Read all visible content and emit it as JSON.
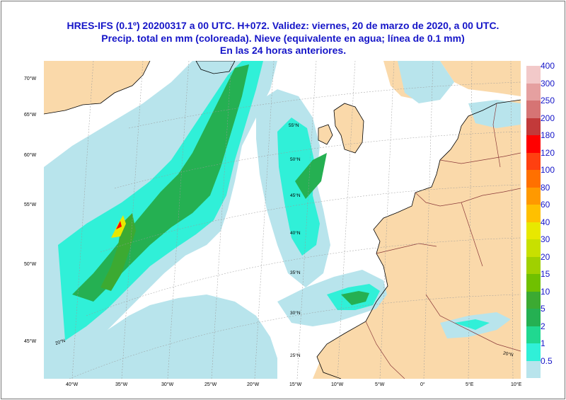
{
  "title": {
    "line1": "HRES-IFS (0.1º) 20200317  a 00 UTC.  H+072. Validez: viernes, 20 de marzo de 2020,  a  00 UTC.",
    "line2": "Precip. total en mm (coloreada). Nieve (equivalente en agua; línea de 0.1 mm)",
    "line3": "En las 24 horas anteriores."
  },
  "axes": {
    "left_labels": [
      "70°W",
      "65°W",
      "60°W",
      "55°W",
      "50°W",
      "45°W"
    ],
    "bottom_labels": [
      "40°W",
      "35°W",
      "30°W",
      "25°W",
      "20°W",
      "15°W",
      "10°W",
      "5°W",
      "0°",
      "5°E",
      "10°E"
    ],
    "inner_lat_labels": [
      "55°N",
      "50°N",
      "45°N",
      "40°N",
      "35°N",
      "30°N",
      "25°N"
    ],
    "corner_labels": [
      "20°N",
      "20°N"
    ]
  },
  "colorbar": {
    "labels": [
      "400",
      "300",
      "250",
      "200",
      "180",
      "120",
      "100",
      "80",
      "60",
      "40",
      "30",
      "20",
      "15",
      "10",
      "5",
      "2",
      "1",
      "0.5"
    ],
    "colors": [
      "#f2c9c9",
      "#e5a0a0",
      "#d67474",
      "#c23a3a",
      "#ff0000",
      "#ff4010",
      "#ff7000",
      "#ff9900",
      "#ffc000",
      "#e8e800",
      "#c8e000",
      "#a0d000",
      "#70c000",
      "#3caa32",
      "#25b052",
      "#20d890",
      "#30f0d8",
      "#b8e4ec"
    ]
  },
  "map_colors": {
    "sea": "#ffffff",
    "land": "#fad9aa",
    "coast": "#000000",
    "border": "#8b3a3a",
    "grid": "#9a9a9a",
    "precip_light": "#b8e4ec",
    "precip_mid": "#30f0d8",
    "precip_green": "#25b052",
    "precip_dark": "#3caa32",
    "precip_yellow": "#e8e800",
    "precip_red": "#ff0000"
  }
}
